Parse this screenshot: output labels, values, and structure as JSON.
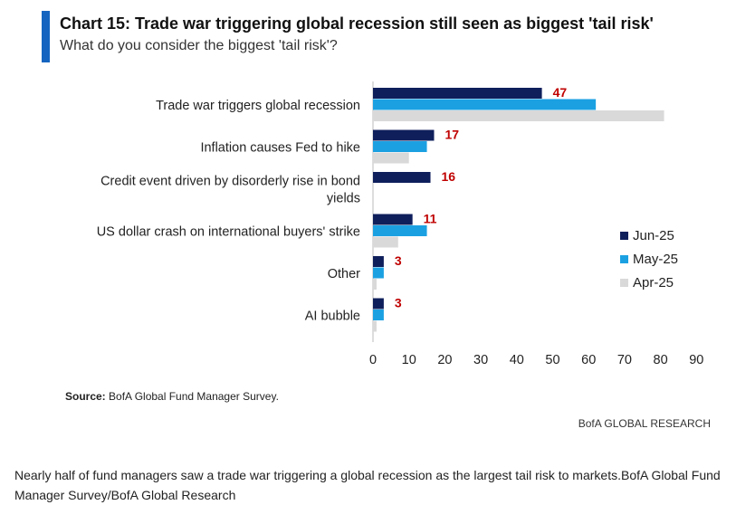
{
  "header": {
    "title": "Chart 15: Trade war triggering global recession still seen as biggest 'tail risk'",
    "subtitle": "What do you consider the biggest 'tail risk'?"
  },
  "chart_data": {
    "type": "bar",
    "orientation": "horizontal",
    "categories": [
      [
        "Trade war triggers global recession"
      ],
      [
        "Inflation causes Fed to hike"
      ],
      [
        "Credit event driven by disorderly rise in bond",
        "yields"
      ],
      [
        "US dollar crash on international buyers' strike"
      ],
      [
        "Other"
      ],
      [
        "AI bubble"
      ]
    ],
    "series": [
      {
        "name": "Jun-25",
        "color": "#0F1F5C",
        "values": [
          47,
          17,
          16,
          11,
          3,
          3
        ]
      },
      {
        "name": "May-25",
        "color": "#1BA1E2",
        "values": [
          62,
          15,
          0,
          15,
          3,
          3
        ]
      },
      {
        "name": "Apr-25",
        "color": "#D9D9D9",
        "values": [
          81,
          10,
          0,
          7,
          1,
          1
        ]
      }
    ],
    "data_labels": [
      "47",
      "17",
      "16",
      "11",
      "3",
      "3"
    ],
    "data_label_color": "#C00000",
    "x_ticks": [
      0,
      10,
      20,
      30,
      40,
      50,
      60,
      70,
      80,
      90
    ],
    "xlim": [
      0,
      90
    ],
    "legend_position": "right"
  },
  "footer": {
    "source_label": "Source:",
    "source_text": " BofA Global Fund Manager Survey.",
    "brand": "BofA GLOBAL RESEARCH",
    "caption": "Nearly half of fund managers saw a trade war triggering a global recession as the largest tail risk to markets.BofA Global Fund Manager Survey/BofA Global Research"
  }
}
